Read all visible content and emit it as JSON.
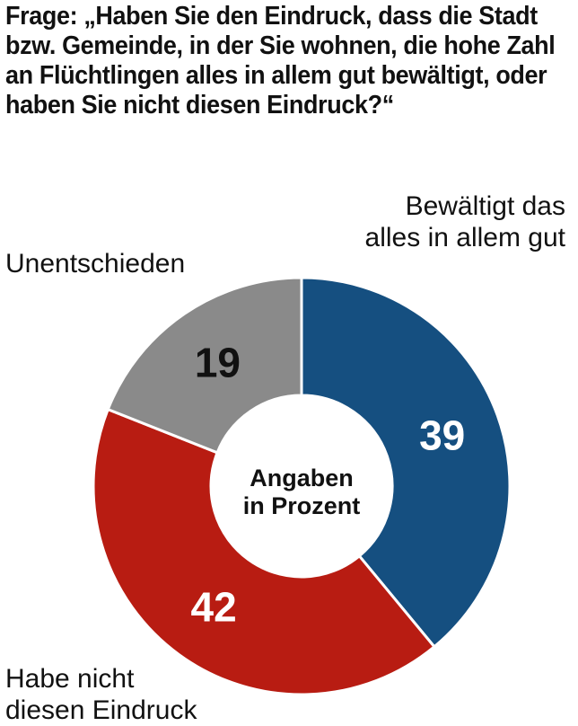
{
  "question": "Frage: „Haben Sie den Eindruck, dass die Stadt bzw. Gemeinde, in der Sie wohnen, die hohe Zahl an Flüchtlingen alles in allem gut bewältigt, oder haben Sie nicht diesen Eindruck?“",
  "chart_data": {
    "type": "pie",
    "variant": "donut",
    "center_label": [
      "Angaben",
      "in Prozent"
    ],
    "unit": "Prozent",
    "slices": [
      {
        "label_lines": [
          "Bewältigt das",
          "alles in allem gut"
        ],
        "value": 39,
        "color": "#154f80",
        "value_color": "#ffffff"
      },
      {
        "label_lines": [
          "Habe nicht",
          "diesen Eindruck"
        ],
        "value": 42,
        "color": "#b81c12",
        "value_color": "#ffffff"
      },
      {
        "label_lines": [
          "Unentschieden"
        ],
        "value": 19,
        "color": "#8a8a8a",
        "value_color": "#111111"
      }
    ]
  }
}
